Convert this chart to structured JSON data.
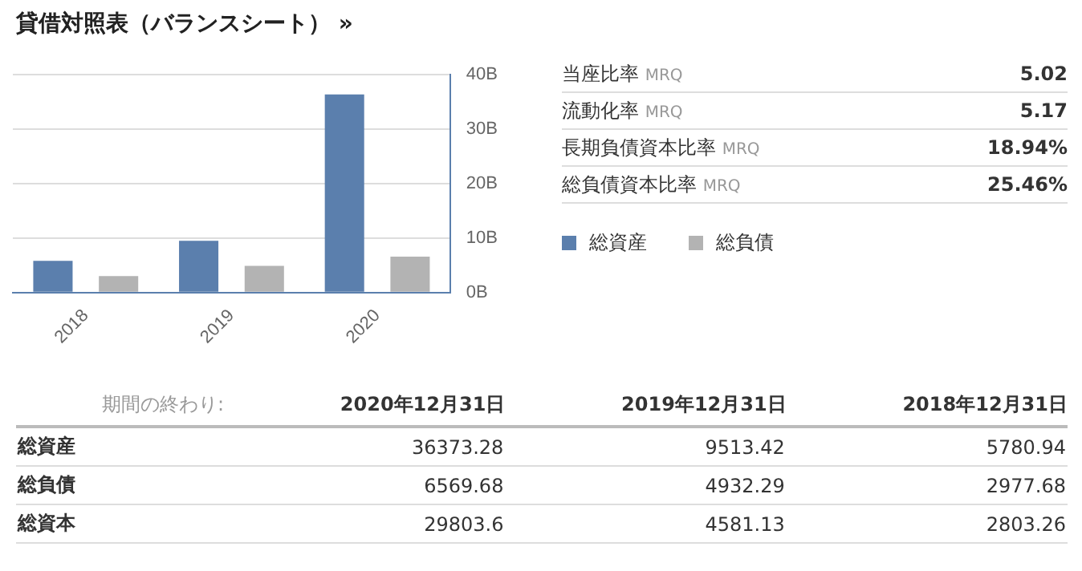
{
  "chart_data": [
    {
      "type": "bar",
      "title": "貸借対照表（バランスシート） »",
      "categories": [
        "2018",
        "2019",
        "2020"
      ],
      "series": [
        {
          "name": "総資産",
          "color": "#5b7fad",
          "values": [
            5.8,
            9.5,
            36.4
          ]
        },
        {
          "name": "総負債",
          "color": "#b3b3b3",
          "values": [
            3.0,
            4.9,
            6.6
          ]
        }
      ],
      "ylim": [
        0,
        40
      ],
      "yticks": [
        {
          "value": 0,
          "label": "0B"
        },
        {
          "value": 10,
          "label": "10B"
        },
        {
          "value": 20,
          "label": "20B"
        },
        {
          "value": 30,
          "label": "30B"
        },
        {
          "value": 40,
          "label": "40B"
        }
      ],
      "grid": "y",
      "legend": "right"
    },
    {
      "type": "other",
      "categories": [
        "当座比率 MRQ",
        "流動化率 MRQ",
        "長期負債資本比率 MRQ",
        "総負債資本比率 MRQ"
      ],
      "values": [
        5.02,
        5.17,
        18.94,
        25.46
      ],
      "value_labels": [
        "5.02",
        "5.17",
        "18.94%",
        "25.46%"
      ]
    },
    {
      "type": "other",
      "xlabel": "期間の終わり:",
      "categories": [
        "2020年12月31日",
        "2019年12月31日",
        "2018年12月31日"
      ],
      "data_labels": true,
      "series": [
        {
          "name": "総資産",
          "values": [
            36373.28,
            9513.42,
            5780.94
          ]
        },
        {
          "name": "総負債",
          "values": [
            6569.68,
            4932.29,
            2977.68
          ]
        },
        {
          "name": "総資本",
          "values": [
            29803.6,
            4581.13,
            2803.26
          ]
        }
      ]
    }
  ]
}
